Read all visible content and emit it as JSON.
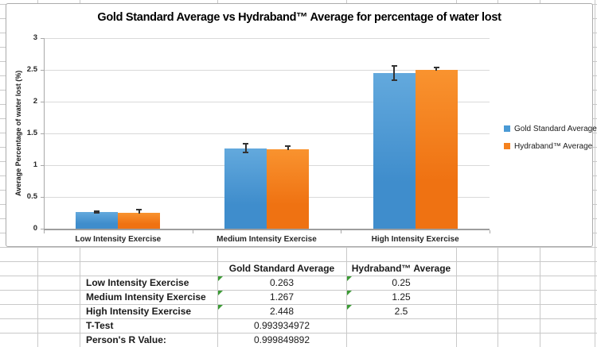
{
  "chart_data": {
    "type": "bar",
    "title": "Gold Standard Average vs Hydraband™ Average for percentage of water lost",
    "ylabel": "Average Percentage of water lost (%)",
    "xlabel": "",
    "categories": [
      "Low Intensity Exercise",
      "Medium Intensity Exercise",
      "High Intensity Exercise"
    ],
    "series": [
      {
        "name": "Gold Standard Average",
        "color": "#4A9AD5",
        "gradient_top": "#63A9DD",
        "gradient_bottom": "#3F8DCC",
        "values": [
          0.263,
          1.267,
          2.448
        ],
        "error_bars": [
          0.012,
          0.065,
          0.11
        ],
        "error_cap_style": "both"
      },
      {
        "name": "Hydraband™ Average",
        "color": "#F5821E",
        "gradient_top": "#F9932F",
        "gradient_bottom": "#EF7212",
        "values": [
          0.25,
          1.25,
          2.5
        ],
        "error_bars": [
          0.055,
          0.05,
          0.035
        ],
        "error_cap_style": "top"
      }
    ],
    "ylim": [
      0,
      3
    ],
    "ytick_step": 0.5,
    "ytick_labels": [
      "0",
      "0.5",
      "1",
      "1.5",
      "2",
      "2.5",
      "3"
    ],
    "grid": true,
    "legend_position": "right"
  },
  "table": {
    "col_headers": [
      "Gold Standard Average",
      "Hydraband™ Average"
    ],
    "rows": [
      {
        "label": "Low Intensity Exercise",
        "values": [
          "0.263",
          "0.25"
        ],
        "flags": [
          true,
          true
        ]
      },
      {
        "label": "Medium Intensity Exercise",
        "values": [
          "1.267",
          "1.25"
        ],
        "flags": [
          true,
          true
        ]
      },
      {
        "label": "High Intensity Exercise",
        "values": [
          "2.448",
          "2.5"
        ],
        "flags": [
          true,
          true
        ]
      },
      {
        "label": "T-Test",
        "values": [
          "0.993934972",
          ""
        ],
        "flags": [
          false,
          false
        ]
      },
      {
        "label": "Person's R Value:",
        "values": [
          "0.999849892",
          ""
        ],
        "flags": [
          false,
          false
        ]
      }
    ]
  },
  "colors": {
    "sheet_gridline": "#C9C9C9",
    "chart_border": "#ABABAB",
    "error_bar": "#333333",
    "flag_green": "#3C9B35"
  }
}
